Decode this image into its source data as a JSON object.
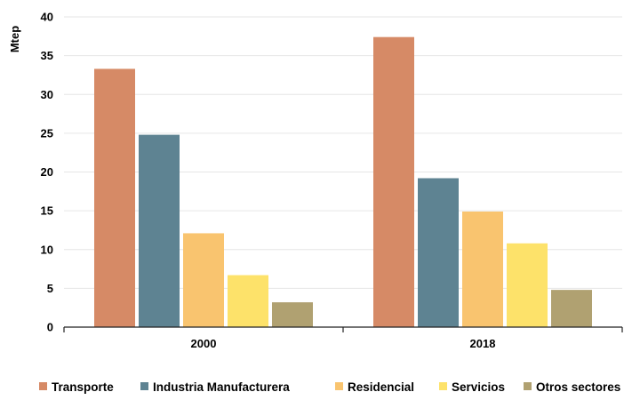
{
  "chart_data": {
    "type": "bar",
    "categories": [
      "2000",
      "2018"
    ],
    "series": [
      {
        "name": "Transporte",
        "values": [
          33.3,
          37.4
        ],
        "color": "#D68A66"
      },
      {
        "name": "Industria Manufacturera",
        "values": [
          24.8,
          19.2
        ],
        "color": "#5E8392"
      },
      {
        "name": "Residencial",
        "values": [
          12.1,
          14.9
        ],
        "color": "#F9C46F"
      },
      {
        "name": "Servicios",
        "values": [
          6.7,
          10.8
        ],
        "color": "#FDE26A"
      },
      {
        "name": "Otros sectores",
        "values": [
          3.2,
          4.8
        ],
        "color": "#B0A171"
      }
    ],
    "ylabel": "Mtep",
    "xlabel": "",
    "title": "",
    "ylim": [
      0,
      40
    ],
    "yticks": [
      0,
      5,
      10,
      15,
      20,
      25,
      30,
      35,
      40
    ],
    "grid": true,
    "legend_position": "bottom"
  }
}
